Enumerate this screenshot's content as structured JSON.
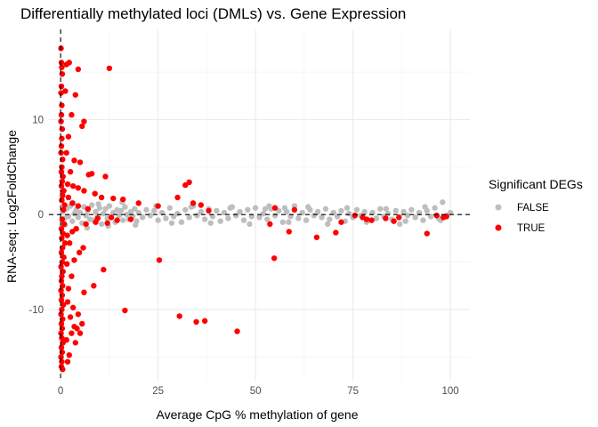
{
  "chart_data": {
    "type": "scatter",
    "title": "Differentially methylated loci (DMLs) vs. Gene Expression",
    "xlabel": "Average CpG % methylation of gene",
    "ylabel": "RNA-seq: Log2FoldChange",
    "xlim": [
      -3,
      105
    ],
    "ylim": [
      -17.5,
      19.5
    ],
    "x_ticks": [
      0,
      25,
      50,
      75,
      100
    ],
    "y_ticks": [
      -10,
      0,
      10
    ],
    "x_tick_labels": [
      "0",
      "25",
      "50",
      "75",
      "100"
    ],
    "y_tick_labels": [
      "-10",
      "0",
      "10"
    ],
    "grid": true,
    "reference_lines": {
      "x": 0,
      "y": 0,
      "style": "dashed"
    },
    "legend": {
      "title": "Significant DEGs",
      "position": "right"
    },
    "colors": {
      "FALSE": "#bebebe",
      "TRUE": "#ff0000",
      "reference_line": "#000000"
    },
    "series": [
      {
        "name": "FALSE",
        "color": "#bebebe",
        "points": [
          [
            0.5,
            0.3
          ],
          [
            1.0,
            -0.4
          ],
          [
            1.5,
            0.6
          ],
          [
            2.0,
            -0.2
          ],
          [
            2.5,
            0.9
          ],
          [
            3.0,
            -0.7
          ],
          [
            3.5,
            0.1
          ],
          [
            4.0,
            0.5
          ],
          [
            4.5,
            -0.3
          ],
          [
            5.0,
            0.2
          ],
          [
            5.5,
            -0.9
          ],
          [
            6.0,
            0.8
          ],
          [
            6.5,
            -0.1
          ],
          [
            7.0,
            0.4
          ],
          [
            7.5,
            -0.5
          ],
          [
            8.0,
            1.0
          ],
          [
            8.5,
            -0.6
          ],
          [
            9.0,
            0.3
          ],
          [
            9.5,
            -0.2
          ],
          [
            10.0,
            0.7
          ],
          [
            10.5,
            -1.0
          ],
          [
            11.0,
            0.1
          ],
          [
            11.5,
            0.6
          ],
          [
            12.0,
            -0.4
          ],
          [
            12.5,
            0.9
          ],
          [
            13.0,
            -0.3
          ],
          [
            13.5,
            0.2
          ],
          [
            14.0,
            -0.8
          ],
          [
            14.5,
            0.5
          ],
          [
            15.0,
            -0.1
          ],
          [
            15.5,
            0.4
          ],
          [
            16.0,
            -0.6
          ],
          [
            16.5,
            0.8
          ],
          [
            17.0,
            0.0
          ],
          [
            17.5,
            -0.5
          ],
          [
            18.0,
            0.3
          ],
          [
            18.5,
            -0.2
          ],
          [
            19.0,
            0.6
          ],
          [
            19.5,
            -0.7
          ],
          [
            20.0,
            0.2
          ],
          [
            21.0,
            -0.3
          ],
          [
            22.0,
            0.5
          ],
          [
            23.0,
            -0.1
          ],
          [
            24.0,
            0.4
          ],
          [
            25.0,
            -0.6
          ],
          [
            26.0,
            0.2
          ],
          [
            27.0,
            -0.4
          ],
          [
            28.0,
            0.7
          ],
          [
            29.0,
            -0.2
          ],
          [
            30.0,
            0.1
          ],
          [
            31.0,
            -0.8
          ],
          [
            32.0,
            0.5
          ],
          [
            33.0,
            -0.3
          ],
          [
            34.0,
            0.9
          ],
          [
            35.0,
            -0.1
          ],
          [
            36.0,
            0.3
          ],
          [
            37.0,
            -0.5
          ],
          [
            38.0,
            0.6
          ],
          [
            39.0,
            -0.2
          ],
          [
            40.0,
            0.4
          ],
          [
            41.0,
            -0.7
          ],
          [
            42.0,
            0.2
          ],
          [
            43.0,
            -0.4
          ],
          [
            44.0,
            0.8
          ],
          [
            45.0,
            -0.1
          ],
          [
            46.0,
            0.3
          ],
          [
            47.0,
            -0.6
          ],
          [
            48.0,
            0.5
          ],
          [
            49.0,
            -0.2
          ],
          [
            50.0,
            0.7
          ],
          [
            51.0,
            -0.3
          ],
          [
            52.0,
            0.1
          ],
          [
            53.0,
            -0.5
          ],
          [
            54.0,
            0.6
          ],
          [
            55.0,
            -0.1
          ],
          [
            56.0,
            0.4
          ],
          [
            57.0,
            -0.8
          ],
          [
            58.0,
            0.3
          ],
          [
            59.0,
            -0.2
          ],
          [
            60.0,
            0.9
          ],
          [
            61.0,
            -0.4
          ],
          [
            62.0,
            0.2
          ],
          [
            63.0,
            -0.6
          ],
          [
            64.0,
            0.5
          ],
          [
            65.0,
            -0.1
          ],
          [
            66.0,
            0.3
          ],
          [
            67.0,
            -0.3
          ],
          [
            68.0,
            0.6
          ],
          [
            69.0,
            -0.5
          ],
          [
            70.0,
            0.2
          ],
          [
            71.0,
            -0.2
          ],
          [
            72.0,
            0.4
          ],
          [
            73.0,
            -0.7
          ],
          [
            74.0,
            0.1
          ],
          [
            75.0,
            -0.3
          ],
          [
            76.0,
            0.5
          ],
          [
            77.0,
            -0.1
          ],
          [
            78.0,
            0.3
          ],
          [
            79.0,
            -0.6
          ],
          [
            80.0,
            0.2
          ],
          [
            81.0,
            -0.4
          ],
          [
            82.0,
            0.6
          ],
          [
            83.0,
            -0.2
          ],
          [
            84.0,
            0.1
          ],
          [
            85.0,
            -0.5
          ],
          [
            86.0,
            0.4
          ],
          [
            87.0,
            -1.0
          ],
          [
            88.0,
            0.3
          ],
          [
            89.0,
            -0.1
          ],
          [
            90.0,
            0.5
          ],
          [
            91.0,
            -0.3
          ],
          [
            92.0,
            0.2
          ],
          [
            93.0,
            -0.6
          ],
          [
            94.0,
            0.4
          ],
          [
            95.0,
            -0.2
          ],
          [
            96.0,
            0.7
          ],
          [
            97.0,
            -0.4
          ],
          [
            98.0,
            1.3
          ],
          [
            99.0,
            -0.1
          ],
          [
            100.0,
            0.2
          ],
          [
            1.2,
            -1.1
          ],
          [
            3.3,
            1.2
          ],
          [
            6.8,
            -1.4
          ],
          [
            9.7,
            1.1
          ],
          [
            12.2,
            -1.2
          ],
          [
            15.8,
            1.3
          ],
          [
            19.2,
            -1.1
          ],
          [
            24.5,
            0.9
          ],
          [
            28.5,
            -0.9
          ],
          [
            33.5,
            0.8
          ],
          [
            38.5,
            -0.9
          ],
          [
            43.5,
            0.7
          ],
          [
            48.5,
            -1.0
          ],
          [
            53.5,
            0.9
          ],
          [
            58.5,
            -0.8
          ],
          [
            63.5,
            0.8
          ],
          [
            68.5,
            -1.0
          ],
          [
            73.5,
            0.7
          ],
          [
            78.5,
            -0.8
          ],
          [
            83.5,
            0.6
          ],
          [
            88.5,
            -0.7
          ],
          [
            93.5,
            0.8
          ],
          [
            97.5,
            -0.6
          ],
          [
            52.5,
            0.6
          ],
          [
            57.5,
            0.7
          ]
        ]
      },
      {
        "name": "TRUE",
        "color": "#ff0000",
        "points": [
          [
            0.1,
            17.5
          ],
          [
            0.2,
            16.0
          ],
          [
            0.3,
            15.5
          ],
          [
            0.4,
            14.8
          ],
          [
            0.2,
            13.5
          ],
          [
            0.1,
            12.8
          ],
          [
            0.3,
            11.5
          ],
          [
            0.2,
            10.5
          ],
          [
            0.1,
            9.8
          ],
          [
            0.4,
            9.0
          ],
          [
            0.3,
            8.0
          ],
          [
            0.2,
            7.2
          ],
          [
            0.1,
            6.5
          ],
          [
            0.5,
            5.8
          ],
          [
            0.3,
            5.0
          ],
          [
            0.2,
            4.5
          ],
          [
            0.6,
            4.0
          ],
          [
            0.4,
            3.5
          ],
          [
            0.2,
            3.0
          ],
          [
            0.8,
            2.5
          ],
          [
            0.5,
            2.0
          ],
          [
            0.3,
            1.5
          ],
          [
            1.0,
            1.0
          ],
          [
            0.7,
            0.5
          ],
          [
            0.4,
            -0.5
          ],
          [
            0.9,
            -1.0
          ],
          [
            0.2,
            -1.5
          ],
          [
            0.6,
            -2.0
          ],
          [
            0.3,
            -2.5
          ],
          [
            1.1,
            -3.0
          ],
          [
            0.5,
            -3.5
          ],
          [
            0.2,
            -4.0
          ],
          [
            0.8,
            -4.5
          ],
          [
            0.4,
            -5.0
          ],
          [
            0.1,
            -5.5
          ],
          [
            0.6,
            -6.0
          ],
          [
            0.3,
            -6.5
          ],
          [
            0.2,
            -7.0
          ],
          [
            0.5,
            -7.5
          ],
          [
            0.1,
            -8.0
          ],
          [
            0.4,
            -8.5
          ],
          [
            0.2,
            -9.0
          ],
          [
            0.7,
            -9.5
          ],
          [
            0.3,
            -10.0
          ],
          [
            0.1,
            -10.5
          ],
          [
            0.5,
            -11.0
          ],
          [
            0.2,
            -11.5
          ],
          [
            0.4,
            -12.0
          ],
          [
            0.1,
            -12.5
          ],
          [
            0.3,
            -13.0
          ],
          [
            0.6,
            -13.5
          ],
          [
            0.2,
            -14.0
          ],
          [
            0.4,
            -14.5
          ],
          [
            0.1,
            -15.0
          ],
          [
            0.3,
            -15.5
          ],
          [
            0.2,
            -16.0
          ],
          [
            0.5,
            -16.3
          ],
          [
            1.8,
            -15.5
          ],
          [
            2.2,
            -14.8
          ],
          [
            1.5,
            -13.2
          ],
          [
            2.8,
            -12.5
          ],
          [
            3.5,
            -11.8
          ],
          [
            4.2,
            -12.0
          ],
          [
            5.0,
            -12.5
          ],
          [
            3.8,
            -13.5
          ],
          [
            2.5,
            -10.8
          ],
          [
            1.8,
            -9.2
          ],
          [
            4.5,
            -10.5
          ],
          [
            5.5,
            -11.5
          ],
          [
            3.2,
            -9.8
          ],
          [
            6.0,
            -8.2
          ],
          [
            8.5,
            -7.5
          ],
          [
            11.0,
            -5.8
          ],
          [
            2.0,
            -7.8
          ],
          [
            2.8,
            -6.5
          ],
          [
            1.6,
            -5.2
          ],
          [
            3.5,
            -4.8
          ],
          [
            4.8,
            -4.0
          ],
          [
            5.8,
            -3.5
          ],
          [
            2.3,
            -3.0
          ],
          [
            1.7,
            -2.2
          ],
          [
            3.0,
            -1.8
          ],
          [
            4.0,
            -1.5
          ],
          [
            6.5,
            -1.0
          ],
          [
            9.0,
            -0.8
          ],
          [
            12.0,
            -0.9
          ],
          [
            14.5,
            -0.6
          ],
          [
            18.0,
            -0.5
          ],
          [
            1.5,
            15.8
          ],
          [
            2.2,
            16.0
          ],
          [
            4.5,
            15.3
          ],
          [
            12.5,
            15.4
          ],
          [
            3.8,
            12.6
          ],
          [
            1.2,
            13.0
          ],
          [
            2.8,
            10.5
          ],
          [
            6.0,
            9.8
          ],
          [
            5.5,
            9.3
          ],
          [
            2.0,
            8.2
          ],
          [
            1.5,
            6.5
          ],
          [
            3.5,
            5.7
          ],
          [
            5.0,
            5.5
          ],
          [
            2.5,
            4.5
          ],
          [
            7.2,
            4.2
          ],
          [
            8.0,
            4.3
          ],
          [
            11.5,
            4.0
          ],
          [
            1.8,
            3.2
          ],
          [
            3.2,
            3.0
          ],
          [
            4.5,
            2.8
          ],
          [
            6.0,
            2.5
          ],
          [
            8.8,
            2.2
          ],
          [
            10.5,
            1.8
          ],
          [
            13.5,
            1.7
          ],
          [
            16.0,
            1.6
          ],
          [
            20.0,
            1.2
          ],
          [
            25.0,
            0.9
          ],
          [
            32.0,
            3.1
          ],
          [
            33.0,
            3.4
          ],
          [
            30.0,
            1.8
          ],
          [
            34.0,
            1.2
          ],
          [
            36.0,
            1.0
          ],
          [
            38.0,
            0.4
          ],
          [
            55.0,
            0.7
          ],
          [
            60.0,
            0.5
          ],
          [
            2.0,
            1.8
          ],
          [
            3.0,
            1.2
          ],
          [
            4.5,
            0.9
          ],
          [
            7.0,
            0.6
          ],
          [
            9.5,
            -0.4
          ],
          [
            13.0,
            -0.3
          ],
          [
            16.5,
            -10.1
          ],
          [
            25.3,
            -4.8
          ],
          [
            30.5,
            -10.7
          ],
          [
            34.8,
            -11.3
          ],
          [
            37.0,
            -11.2
          ],
          [
            45.3,
            -12.3
          ],
          [
            53.7,
            -1.0
          ],
          [
            54.8,
            -4.6
          ],
          [
            58.6,
            -1.8
          ],
          [
            65.7,
            -2.4
          ],
          [
            70.6,
            -1.9
          ],
          [
            77.5,
            -0.3
          ],
          [
            78.5,
            -0.5
          ],
          [
            79.8,
            -0.6
          ],
          [
            83.4,
            -0.4
          ],
          [
            85.5,
            -0.7
          ],
          [
            94.0,
            -2.0
          ],
          [
            98.2,
            -0.3
          ],
          [
            99.0,
            -0.2
          ],
          [
            96.5,
            -0.1
          ],
          [
            72.0,
            -0.8
          ],
          [
            75.5,
            -0.1
          ],
          [
            86.8,
            -0.3
          ]
        ]
      }
    ]
  }
}
